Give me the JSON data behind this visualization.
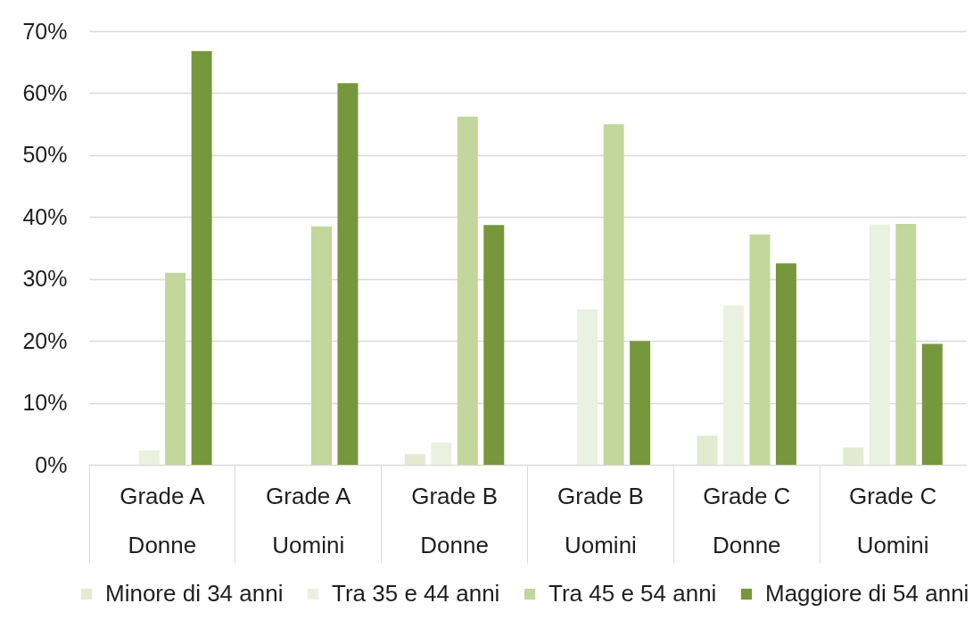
{
  "chart_data": {
    "type": "bar",
    "categories": [
      "Grade A\nDonne",
      "Grade A\nUomini",
      "Grade B\nDonne",
      "Grade B\nUomini",
      "Grade C\nDonne",
      "Grade C\nUomini"
    ],
    "series": [
      {
        "name": "Minore di 34 anni",
        "color": "#e2ead0",
        "values": [
          null,
          null,
          1.7,
          null,
          4.7,
          2.8
        ]
      },
      {
        "name": "Tra 35 e 44 anni",
        "color": "#ebf1e0",
        "values": [
          2.3,
          null,
          3.6,
          25.1,
          25.7,
          38.8
        ]
      },
      {
        "name": "Tra 45 e 54 anni",
        "color": "#c3d69b",
        "values": [
          31.0,
          38.5,
          56.2,
          55.0,
          37.2,
          38.9
        ]
      },
      {
        "name": "Maggiore di 54 anni",
        "color": "#77973d",
        "values": [
          66.8,
          61.6,
          38.7,
          20.0,
          32.5,
          19.5
        ]
      }
    ],
    "ylim": [
      0,
      70
    ],
    "yticks": [
      {
        "value": 0,
        "label": "0%"
      },
      {
        "value": 10,
        "label": "10%"
      },
      {
        "value": 20,
        "label": "20%"
      },
      {
        "value": 30,
        "label": "30%"
      },
      {
        "value": 40,
        "label": "40%"
      },
      {
        "value": 50,
        "label": "50%"
      },
      {
        "value": 60,
        "label": "60%"
      },
      {
        "value": 70,
        "label": "70%"
      }
    ],
    "grid": "y",
    "legend": "bottom"
  }
}
